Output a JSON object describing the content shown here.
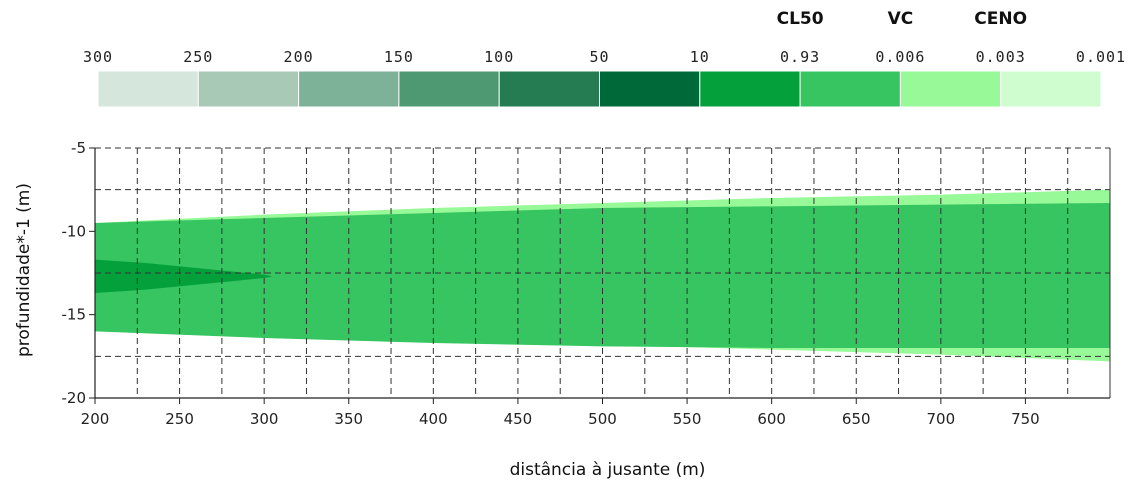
{
  "chart_data": {
    "type": "area",
    "xlabel": "distância à jusante (m)",
    "ylabel": "profundidade*-1 (m)",
    "xlim": [
      200,
      800
    ],
    "ylim": [
      -20,
      -5
    ],
    "x_ticks": [
      "200",
      "250",
      "300",
      "350",
      "400",
      "450",
      "500",
      "550",
      "600",
      "650",
      "700",
      "750"
    ],
    "y_ticks": [
      "-5",
      "-10",
      "-15",
      "-20"
    ],
    "grid": true,
    "legend": {
      "placement": "top",
      "reference_labels": [
        {
          "text": "CL50",
          "at": "0.93"
        },
        {
          "text": "VC",
          "at": "0.006"
        },
        {
          "text": "CENO",
          "at": "0.003"
        }
      ],
      "boundaries": [
        "300",
        "250",
        "200",
        "150",
        "100",
        "50",
        "10",
        "0.93",
        "0.006",
        "0.003",
        "0.001"
      ],
      "colors": [
        "#d5e6dc",
        "#a8c9b6",
        "#7eb298",
        "#4e9872",
        "#267c52",
        "#00693a",
        "#03a03b",
        "#36c560",
        "#98f998",
        "#cffdd0"
      ]
    },
    "plume_bands": [
      {
        "range": "0.001–0.003",
        "color": "#cffdd0"
      },
      {
        "range": "0.003–0.006",
        "color": "#98f998",
        "x": [
          200,
          300,
          400,
          500,
          600,
          700,
          800
        ],
        "top": [
          -9.5,
          -9.0,
          -8.6,
          -8.3,
          -8.0,
          -7.8,
          -7.5
        ],
        "bottom": [
          -15.5,
          -16.0,
          -16.4,
          -16.8,
          -17.1,
          -17.4,
          -17.8
        ]
      },
      {
        "range": "0.006–0.93",
        "color": "#36c560",
        "x": [
          200,
          300,
          400,
          500,
          600,
          700,
          800
        ],
        "top": [
          -9.5,
          -9.2,
          -8.9,
          -8.6,
          -8.5,
          -8.4,
          -8.3
        ],
        "bottom": [
          -16.0,
          -16.4,
          -16.7,
          -16.9,
          -17.0,
          -17.0,
          -17.0
        ]
      },
      {
        "range": "0.93–10",
        "color": "#03a03b",
        "x": [
          200,
          230,
          260,
          280,
          300,
          305
        ],
        "top": [
          -11.7,
          -11.9,
          -12.2,
          -12.4,
          -12.6,
          -12.7
        ],
        "bottom": [
          -13.7,
          -13.5,
          -13.2,
          -13.0,
          -12.8,
          -12.7
        ]
      }
    ],
    "dashed_reference_depths": [
      -7.5,
      -12.5,
      -17.5
    ]
  }
}
